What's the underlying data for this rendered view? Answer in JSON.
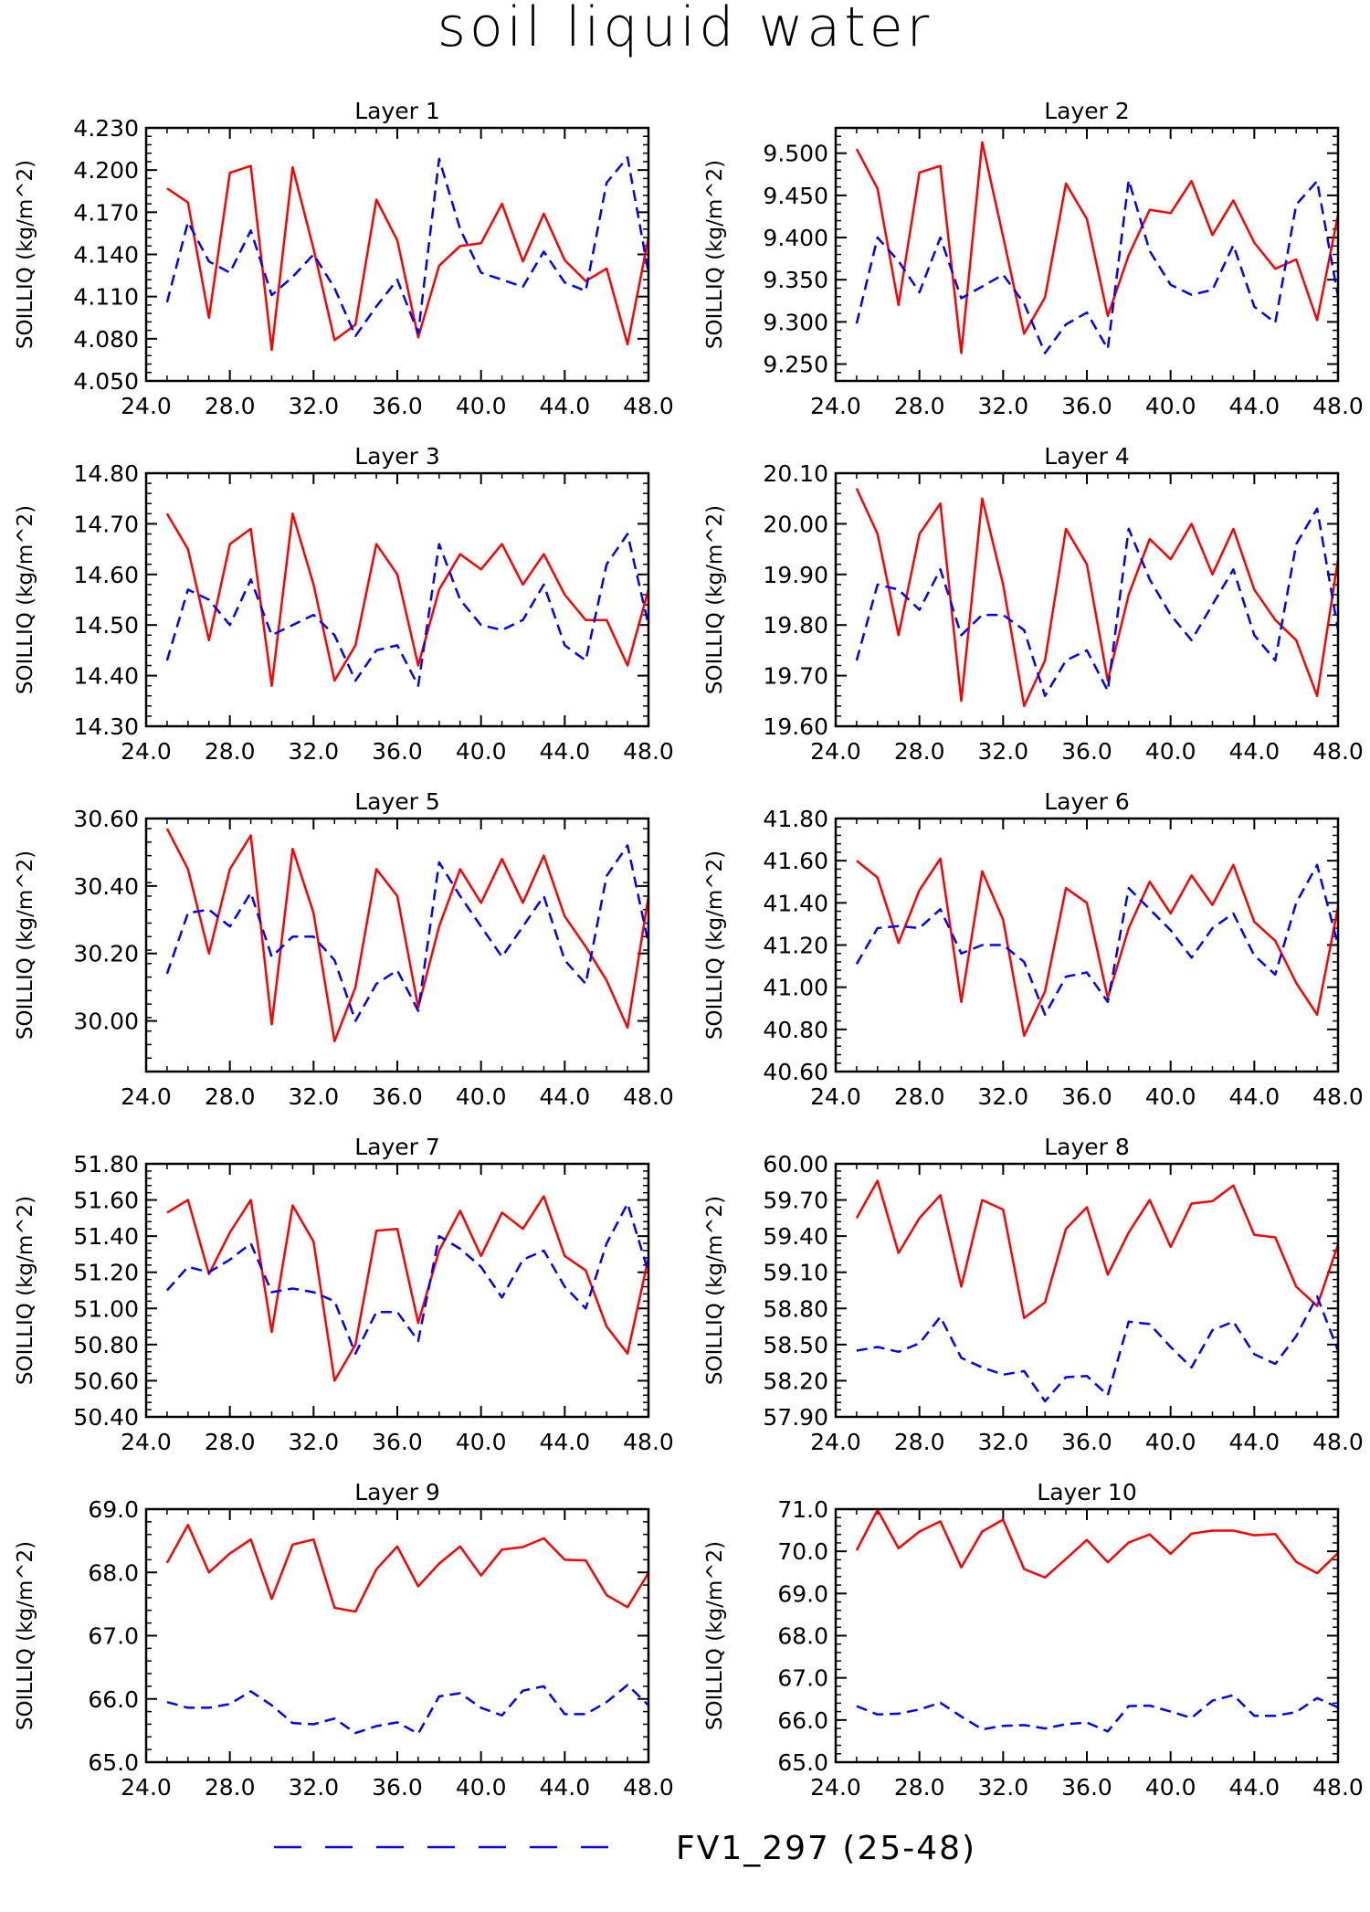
{
  "title": "soil liquid water",
  "chart_data": [
    {
      "type": "line",
      "title": "Layer 1",
      "ylabel": "SOILLIQ   (kg/m^2)",
      "xlim": [
        24,
        48
      ],
      "ylim": [
        4.05,
        4.23
      ],
      "xticks": [
        "24.0",
        "28.0",
        "32.0",
        "36.0",
        "40.0",
        "44.0",
        "48.0"
      ],
      "yticks": [
        "4.050",
        "4.080",
        "4.110",
        "4.140",
        "4.170",
        "4.200",
        "4.230"
      ],
      "x": [
        25,
        26,
        27,
        28,
        29,
        30,
        31,
        32,
        33,
        34,
        35,
        36,
        37,
        38,
        39,
        40,
        41,
        42,
        43,
        44,
        45,
        46,
        47,
        48
      ],
      "series": [
        {
          "color": "#ff0000",
          "dash": "solid",
          "values": [
            4.187,
            4.177,
            4.095,
            4.198,
            4.203,
            4.072,
            4.202,
            4.144,
            4.079,
            4.09,
            4.179,
            4.15,
            4.081,
            4.132,
            4.146,
            4.148,
            4.176,
            4.135,
            4.169,
            4.136,
            4.121,
            4.13,
            4.076,
            4.152
          ]
        },
        {
          "color": "#0000ff",
          "dash": "dashed",
          "values": [
            4.106,
            4.163,
            4.135,
            4.127,
            4.157,
            4.111,
            4.124,
            4.14,
            4.116,
            4.082,
            4.103,
            4.122,
            4.084,
            4.208,
            4.158,
            4.127,
            4.122,
            4.117,
            4.142,
            4.12,
            4.114,
            4.191,
            4.209,
            4.127
          ]
        }
      ]
    },
    {
      "type": "line",
      "title": "Layer 2",
      "ylabel": "SOILLIQ   (kg/m^2)",
      "xlim": [
        24,
        48
      ],
      "ylim": [
        9.23,
        9.53
      ],
      "xticks": [
        "24.0",
        "28.0",
        "32.0",
        "36.0",
        "40.0",
        "44.0",
        "48.0"
      ],
      "yticks": [
        "9.250",
        "9.300",
        "9.350",
        "9.400",
        "9.450",
        "9.500"
      ],
      "x": [
        25,
        26,
        27,
        28,
        29,
        30,
        31,
        32,
        33,
        34,
        35,
        36,
        37,
        38,
        39,
        40,
        41,
        42,
        43,
        44,
        45,
        46,
        47,
        48
      ],
      "series": [
        {
          "color": "#ff0000",
          "dash": "solid",
          "values": [
            9.505,
            9.458,
            9.32,
            9.477,
            9.485,
            9.263,
            9.513,
            9.401,
            9.286,
            9.329,
            9.464,
            9.422,
            9.307,
            9.379,
            9.433,
            9.429,
            9.467,
            9.403,
            9.444,
            9.394,
            9.363,
            9.374,
            9.302,
            9.427
          ]
        },
        {
          "color": "#0000ff",
          "dash": "dashed",
          "values": [
            9.298,
            9.4,
            9.372,
            9.335,
            9.4,
            9.328,
            9.342,
            9.356,
            9.322,
            9.263,
            9.297,
            9.311,
            9.268,
            9.468,
            9.384,
            9.344,
            9.332,
            9.338,
            9.391,
            9.318,
            9.299,
            9.439,
            9.467,
            9.33
          ]
        }
      ]
    },
    {
      "type": "line",
      "title": "Layer 3",
      "ylabel": "SOILLIQ   (kg/m^2)",
      "xlim": [
        24,
        48
      ],
      "ylim": [
        14.3,
        14.8
      ],
      "xticks": [
        "24.0",
        "28.0",
        "32.0",
        "36.0",
        "40.0",
        "44.0",
        "48.0"
      ],
      "yticks": [
        "14.30",
        "14.40",
        "14.50",
        "14.60",
        "14.70",
        "14.80"
      ],
      "x": [
        25,
        26,
        27,
        28,
        29,
        30,
        31,
        32,
        33,
        34,
        35,
        36,
        37,
        38,
        39,
        40,
        41,
        42,
        43,
        44,
        45,
        46,
        47,
        48
      ],
      "series": [
        {
          "color": "#ff0000",
          "dash": "solid",
          "values": [
            14.72,
            14.65,
            14.47,
            14.66,
            14.69,
            14.38,
            14.72,
            14.58,
            14.39,
            14.46,
            14.66,
            14.6,
            14.42,
            14.57,
            14.64,
            14.61,
            14.66,
            14.58,
            14.64,
            14.56,
            14.51,
            14.51,
            14.42,
            14.57
          ]
        },
        {
          "color": "#0000ff",
          "dash": "dashed",
          "values": [
            14.43,
            14.57,
            14.55,
            14.5,
            14.59,
            14.48,
            14.5,
            14.52,
            14.48,
            14.39,
            14.45,
            14.46,
            14.38,
            14.66,
            14.55,
            14.5,
            14.49,
            14.51,
            14.58,
            14.46,
            14.43,
            14.62,
            14.68,
            14.5
          ]
        }
      ]
    },
    {
      "type": "line",
      "title": "Layer 4",
      "ylabel": "SOILLIQ   (kg/m^2)",
      "xlim": [
        24,
        48
      ],
      "ylim": [
        19.6,
        20.1
      ],
      "xticks": [
        "24.0",
        "28.0",
        "32.0",
        "36.0",
        "40.0",
        "44.0",
        "48.0"
      ],
      "yticks": [
        "19.60",
        "19.70",
        "19.80",
        "19.90",
        "20.00",
        "20.10"
      ],
      "x": [
        25,
        26,
        27,
        28,
        29,
        30,
        31,
        32,
        33,
        34,
        35,
        36,
        37,
        38,
        39,
        40,
        41,
        42,
        43,
        44,
        45,
        46,
        47,
        48
      ],
      "series": [
        {
          "color": "#ff0000",
          "dash": "solid",
          "values": [
            20.07,
            19.98,
            19.78,
            19.98,
            20.04,
            19.65,
            20.05,
            19.88,
            19.64,
            19.73,
            19.99,
            19.92,
            19.69,
            19.86,
            19.97,
            19.93,
            20.0,
            19.9,
            19.99,
            19.87,
            19.81,
            19.77,
            19.66,
            19.93
          ]
        },
        {
          "color": "#0000ff",
          "dash": "dashed",
          "values": [
            19.73,
            19.88,
            19.87,
            19.83,
            19.91,
            19.78,
            19.82,
            19.82,
            19.79,
            19.66,
            19.73,
            19.75,
            19.67,
            19.99,
            19.89,
            19.82,
            19.77,
            19.84,
            19.91,
            19.78,
            19.73,
            19.96,
            20.03,
            19.79
          ]
        }
      ]
    },
    {
      "type": "line",
      "title": "Layer 5",
      "ylabel": "SOILLIQ   (kg/m^2)",
      "xlim": [
        24,
        48
      ],
      "ylim": [
        29.85,
        30.6
      ],
      "xticks": [
        "24.0",
        "28.0",
        "32.0",
        "36.0",
        "40.0",
        "44.0",
        "48.0"
      ],
      "yticks": [
        "30.00",
        "30.20",
        "30.40",
        "30.60"
      ],
      "x": [
        25,
        26,
        27,
        28,
        29,
        30,
        31,
        32,
        33,
        34,
        35,
        36,
        37,
        38,
        39,
        40,
        41,
        42,
        43,
        44,
        45,
        46,
        47,
        48
      ],
      "series": [
        {
          "color": "#ff0000",
          "dash": "solid",
          "values": [
            30.57,
            30.45,
            30.2,
            30.45,
            30.55,
            29.99,
            30.51,
            30.32,
            29.94,
            30.1,
            30.45,
            30.37,
            30.04,
            30.28,
            30.45,
            30.35,
            30.48,
            30.35,
            30.49,
            30.31,
            30.22,
            30.12,
            29.98,
            30.37
          ]
        },
        {
          "color": "#0000ff",
          "dash": "dashed",
          "values": [
            30.14,
            30.32,
            30.33,
            30.28,
            30.38,
            30.19,
            30.25,
            30.25,
            30.18,
            30.0,
            30.11,
            30.15,
            30.03,
            30.47,
            30.37,
            30.28,
            30.19,
            30.28,
            30.37,
            30.18,
            30.11,
            30.43,
            30.52,
            30.23
          ]
        }
      ]
    },
    {
      "type": "line",
      "title": "Layer 6",
      "ylabel": "SOILLIQ   (kg/m^2)",
      "xlim": [
        24,
        48
      ],
      "ylim": [
        40.6,
        41.8
      ],
      "xticks": [
        "24.0",
        "28.0",
        "32.0",
        "36.0",
        "40.0",
        "44.0",
        "48.0"
      ],
      "yticks": [
        "40.60",
        "40.80",
        "41.00",
        "41.20",
        "41.40",
        "41.60",
        "41.80"
      ],
      "x": [
        25,
        26,
        27,
        28,
        29,
        30,
        31,
        32,
        33,
        34,
        35,
        36,
        37,
        38,
        39,
        40,
        41,
        42,
        43,
        44,
        45,
        46,
        47,
        48
      ],
      "series": [
        {
          "color": "#ff0000",
          "dash": "solid",
          "values": [
            41.6,
            41.52,
            41.21,
            41.46,
            41.61,
            40.93,
            41.55,
            41.32,
            40.77,
            40.98,
            41.47,
            41.4,
            40.95,
            41.28,
            41.5,
            41.35,
            41.53,
            41.39,
            41.58,
            41.31,
            41.22,
            41.02,
            40.87,
            41.38
          ]
        },
        {
          "color": "#0000ff",
          "dash": "dashed",
          "values": [
            41.11,
            41.28,
            41.29,
            41.28,
            41.37,
            41.16,
            41.2,
            41.2,
            41.12,
            40.87,
            41.05,
            41.07,
            40.93,
            41.47,
            41.37,
            41.27,
            41.14,
            41.28,
            41.35,
            41.15,
            41.06,
            41.4,
            41.58,
            41.2
          ]
        }
      ]
    },
    {
      "type": "line",
      "title": "Layer 7",
      "ylabel": "SOILLIQ   (kg/m^2)",
      "xlim": [
        24,
        48
      ],
      "ylim": [
        50.4,
        51.8
      ],
      "xticks": [
        "24.0",
        "28.0",
        "32.0",
        "36.0",
        "40.0",
        "44.0",
        "48.0"
      ],
      "yticks": [
        "50.40",
        "50.60",
        "50.80",
        "51.00",
        "51.20",
        "51.40",
        "51.60",
        "51.80"
      ],
      "x": [
        25,
        26,
        27,
        28,
        29,
        30,
        31,
        32,
        33,
        34,
        35,
        36,
        37,
        38,
        39,
        40,
        41,
        42,
        43,
        44,
        45,
        46,
        47,
        48
      ],
      "series": [
        {
          "color": "#ff0000",
          "dash": "solid",
          "values": [
            51.53,
            51.6,
            51.19,
            51.42,
            51.6,
            50.87,
            51.57,
            51.37,
            50.6,
            50.8,
            51.43,
            51.44,
            50.92,
            51.32,
            51.54,
            51.29,
            51.53,
            51.44,
            51.62,
            51.29,
            51.21,
            50.9,
            50.75,
            51.28
          ]
        },
        {
          "color": "#0000ff",
          "dash": "dashed",
          "values": [
            51.1,
            51.23,
            51.2,
            51.27,
            51.36,
            51.09,
            51.11,
            51.09,
            51.04,
            50.75,
            50.98,
            50.98,
            50.82,
            51.4,
            51.33,
            51.23,
            51.06,
            51.27,
            51.32,
            51.12,
            51.0,
            51.36,
            51.58,
            51.2
          ]
        }
      ]
    },
    {
      "type": "line",
      "title": "Layer 8",
      "ylabel": "SOILLIQ   (kg/m^2)",
      "xlim": [
        24,
        48
      ],
      "ylim": [
        57.9,
        60.0
      ],
      "xticks": [
        "24.0",
        "28.0",
        "32.0",
        "36.0",
        "40.0",
        "44.0",
        "48.0"
      ],
      "yticks": [
        "57.90",
        "58.20",
        "58.50",
        "58.80",
        "59.10",
        "59.40",
        "59.70",
        "60.00"
      ],
      "x": [
        25,
        26,
        27,
        28,
        29,
        30,
        31,
        32,
        33,
        34,
        35,
        36,
        37,
        38,
        39,
        40,
        41,
        42,
        43,
        44,
        45,
        46,
        47,
        48
      ],
      "series": [
        {
          "color": "#ff0000",
          "dash": "solid",
          "values": [
            59.55,
            59.86,
            59.26,
            59.55,
            59.74,
            58.98,
            59.7,
            59.62,
            58.72,
            58.85,
            59.46,
            59.64,
            59.08,
            59.43,
            59.7,
            59.31,
            59.67,
            59.69,
            59.82,
            59.41,
            59.39,
            58.98,
            58.82,
            59.33
          ]
        },
        {
          "color": "#0000ff",
          "dash": "dashed",
          "values": [
            58.45,
            58.48,
            58.44,
            58.51,
            58.73,
            58.39,
            58.31,
            58.25,
            58.28,
            58.03,
            58.23,
            58.24,
            58.08,
            58.69,
            58.67,
            58.48,
            58.31,
            58.62,
            58.69,
            58.42,
            58.34,
            58.57,
            58.9,
            58.45
          ]
        }
      ]
    },
    {
      "type": "line",
      "title": "Layer 9",
      "ylabel": "SOILLIQ   (kg/m^2)",
      "xlim": [
        24,
        48
      ],
      "ylim": [
        65.0,
        69.0
      ],
      "xticks": [
        "24.0",
        "28.0",
        "32.0",
        "36.0",
        "40.0",
        "44.0",
        "48.0"
      ],
      "yticks": [
        "65.0",
        "66.0",
        "67.0",
        "68.0",
        "69.0"
      ],
      "x": [
        25,
        26,
        27,
        28,
        29,
        30,
        31,
        32,
        33,
        34,
        35,
        36,
        37,
        38,
        39,
        40,
        41,
        42,
        43,
        44,
        45,
        46,
        47,
        48
      ],
      "series": [
        {
          "color": "#ff0000",
          "dash": "solid",
          "values": [
            68.15,
            68.75,
            68.0,
            68.3,
            68.52,
            67.58,
            68.44,
            68.52,
            67.44,
            67.38,
            68.05,
            68.41,
            67.78,
            68.14,
            68.41,
            67.95,
            68.36,
            68.4,
            68.54,
            68.2,
            68.19,
            67.64,
            67.45,
            67.99
          ]
        },
        {
          "color": "#0000ff",
          "dash": "dashed",
          "values": [
            65.95,
            65.86,
            65.86,
            65.92,
            66.12,
            65.9,
            65.62,
            65.6,
            65.69,
            65.46,
            65.57,
            65.63,
            65.45,
            66.04,
            66.09,
            65.86,
            65.74,
            66.13,
            66.2,
            65.76,
            65.76,
            65.95,
            66.22,
            65.9
          ]
        }
      ]
    },
    {
      "type": "line",
      "title": "Layer 10",
      "ylabel": "SOILLIQ   (kg/m^2)",
      "xlim": [
        24,
        48
      ],
      "ylim": [
        65.0,
        71.0
      ],
      "xticks": [
        "24.0",
        "28.0",
        "32.0",
        "36.0",
        "40.0",
        "44.0",
        "48.0"
      ],
      "yticks": [
        "65.0",
        "66.0",
        "67.0",
        "68.0",
        "69.0",
        "70.0",
        "71.0"
      ],
      "x": [
        25,
        26,
        27,
        28,
        29,
        30,
        31,
        32,
        33,
        34,
        35,
        36,
        37,
        38,
        39,
        40,
        41,
        42,
        43,
        44,
        45,
        46,
        47,
        48
      ],
      "series": [
        {
          "color": "#ff0000",
          "dash": "solid",
          "values": [
            70.02,
            70.98,
            70.07,
            70.47,
            70.71,
            69.62,
            70.47,
            70.75,
            69.58,
            69.38,
            69.82,
            70.27,
            69.74,
            70.21,
            70.4,
            69.94,
            70.42,
            70.49,
            70.49,
            70.38,
            70.41,
            69.75,
            69.48,
            69.96
          ]
        },
        {
          "color": "#0000ff",
          "dash": "dashed",
          "values": [
            66.33,
            66.13,
            66.15,
            66.25,
            66.41,
            66.08,
            65.78,
            65.86,
            65.88,
            65.8,
            65.9,
            65.94,
            65.73,
            66.33,
            66.34,
            66.2,
            66.05,
            66.46,
            66.59,
            66.1,
            66.1,
            66.19,
            66.52,
            66.3
          ]
        }
      ]
    }
  ],
  "legend": [
    {
      "label": "FV1_297 (25-48)",
      "color": "#0000ff",
      "dash": "dashed"
    }
  ]
}
